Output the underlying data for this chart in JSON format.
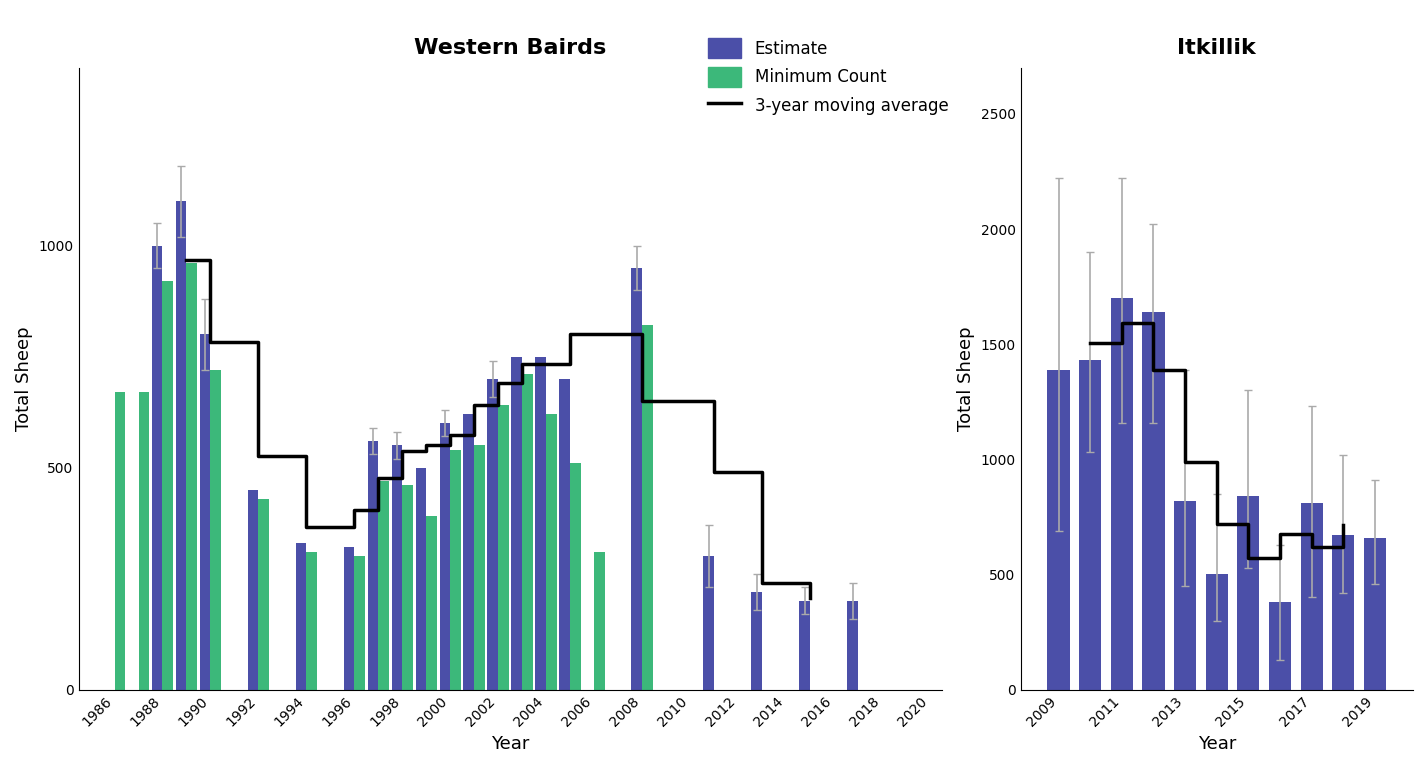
{
  "wb_years": [
    1986,
    1987,
    1988,
    1989,
    1990,
    1991,
    1992,
    1993,
    1994,
    1995,
    1996,
    1997,
    1998,
    1999,
    2000,
    2001,
    2002,
    2003,
    2004,
    2005,
    2006,
    2008,
    2009,
    2010,
    2011,
    2012,
    2013,
    2014,
    2015,
    2016,
    2017,
    2018,
    2019
  ],
  "wb_estimate": [
    null,
    null,
    1000,
    1100,
    800,
    null,
    450,
    null,
    330,
    null,
    320,
    560,
    550,
    500,
    600,
    620,
    700,
    750,
    750,
    700,
    null,
    950,
    null,
    null,
    300,
    null,
    220,
    null,
    200,
    null,
    200,
    null,
    null
  ],
  "wb_min_count": [
    670,
    670,
    920,
    960,
    720,
    null,
    430,
    null,
    310,
    null,
    300,
    470,
    460,
    390,
    540,
    550,
    640,
    710,
    620,
    510,
    310,
    820,
    null,
    null,
    null,
    null,
    null,
    null,
    null,
    null,
    null,
    null,
    null
  ],
  "wb_err_low": [
    null,
    null,
    50,
    80,
    80,
    null,
    null,
    null,
    null,
    null,
    null,
    30,
    30,
    null,
    30,
    null,
    40,
    null,
    null,
    null,
    null,
    50,
    null,
    null,
    70,
    null,
    40,
    null,
    30,
    null,
    40,
    null,
    null
  ],
  "wb_err_high": [
    null,
    null,
    50,
    80,
    80,
    null,
    null,
    null,
    null,
    null,
    null,
    30,
    30,
    null,
    30,
    null,
    40,
    null,
    null,
    null,
    null,
    50,
    null,
    null,
    70,
    null,
    40,
    null,
    30,
    null,
    40,
    null,
    null
  ],
  "itk_years": [
    2009,
    2010,
    2011,
    2012,
    2013,
    2014,
    2015,
    2016,
    2017,
    2018,
    2019
  ],
  "itk_estimate": [
    1390,
    1430,
    1700,
    1640,
    820,
    500,
    840,
    380,
    810,
    670,
    660
  ],
  "itk_err_low": [
    700,
    400,
    540,
    480,
    370,
    200,
    310,
    250,
    410,
    250,
    200
  ],
  "itk_err_high": [
    830,
    470,
    520,
    380,
    570,
    350,
    460,
    250,
    420,
    350,
    250
  ],
  "estimate_color": "#4b4fa8",
  "min_count_color": "#3cb87a",
  "moving_avg_color": "#000000",
  "error_bar_color": "#aaaaaa",
  "wb_title": "Western Bairds",
  "itk_title": "Itkillik",
  "ylabel": "Total Sheep",
  "xlabel": "Year",
  "legend_estimate": "Estimate",
  "legend_min_count": "Minimum Count",
  "legend_moving_avg": "3-year moving average",
  "wb_ylim": [
    0,
    1400
  ],
  "itk_ylim": [
    0,
    2700
  ],
  "wb_yticks": [
    0,
    500,
    1000
  ],
  "itk_yticks": [
    0,
    500,
    1000,
    1500,
    2000,
    2500
  ]
}
